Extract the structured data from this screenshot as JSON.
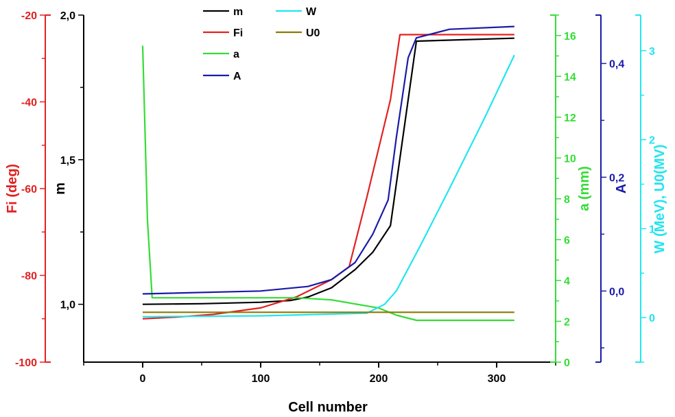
{
  "chart_data": {
    "type": "line",
    "xlabel": "Cell number",
    "x_ticks": [
      "0",
      "100",
      "200",
      "300"
    ],
    "xlim": [
      -50,
      350
    ],
    "axes": {
      "fi": {
        "label": "Fi (deg)",
        "color": "#e32020",
        "lim": [
          -100,
          -20
        ],
        "ticks": [
          "-20",
          "-40",
          "-60",
          "-80",
          "-100"
        ]
      },
      "m": {
        "label": "m",
        "color": "#000000",
        "lim": [
          0.8,
          2.0
        ],
        "ticks": [
          "2,0",
          "1,5",
          "1,0"
        ]
      },
      "a": {
        "label": "a (mm)",
        "color": "#33dd33",
        "lim": [
          0,
          17
        ],
        "ticks": [
          "0",
          "2",
          "4",
          "6",
          "8",
          "10",
          "12",
          "14",
          "16"
        ]
      },
      "A": {
        "label": "A",
        "color": "#1a1aa8",
        "lim": [
          -0.125,
          0.485
        ],
        "ticks": [
          "0,0",
          "0,2",
          "0,4"
        ]
      },
      "w": {
        "label": "W (MeV), U0(MV)",
        "color": "#22e5ee",
        "lim": [
          -0.5,
          3.4
        ],
        "ticks": [
          "0",
          "1",
          "2",
          "3"
        ]
      }
    },
    "series": [
      {
        "name": "m",
        "axis": "m",
        "color": "#000000",
        "x": [
          0,
          50,
          100,
          125,
          140,
          160,
          180,
          195,
          210,
          232,
          315
        ],
        "y": [
          1.0,
          1.002,
          1.007,
          1.013,
          1.025,
          1.057,
          1.12,
          1.18,
          1.272,
          1.91,
          1.92
        ]
      },
      {
        "name": "Fi",
        "axis": "fi",
        "color": "#e32020",
        "x": [
          0,
          30,
          60,
          100,
          130,
          160,
          175,
          190,
          210,
          218,
          315
        ],
        "y": [
          -90,
          -89.6,
          -89,
          -87.5,
          -85,
          -81,
          -78,
          -62,
          -39.5,
          -24.5,
          -24.5
        ]
      },
      {
        "name": "a",
        "axis": "a",
        "color": "#33dd33",
        "x": [
          0,
          4,
          8,
          60,
          130,
          160,
          200,
          215,
          232,
          315
        ],
        "y": [
          15.5,
          7,
          3.15,
          3.15,
          3.15,
          3.05,
          2.65,
          2.3,
          2.05,
          2.05
        ]
      },
      {
        "name": "A",
        "axis": "A",
        "color": "#1a1aa8",
        "x": [
          0,
          100,
          140,
          160,
          180,
          195,
          208,
          215,
          225,
          232,
          260,
          315
        ],
        "y": [
          -0.005,
          0.0,
          0.008,
          0.02,
          0.05,
          0.1,
          0.16,
          0.27,
          0.41,
          0.445,
          0.46,
          0.465
        ]
      },
      {
        "name": "W",
        "axis": "w",
        "color": "#22e5ee",
        "x": [
          0,
          100,
          190,
          205,
          215,
          235,
          260,
          290,
          315
        ],
        "y": [
          0.01,
          0.02,
          0.05,
          0.15,
          0.3,
          0.8,
          1.45,
          2.25,
          2.95
        ]
      },
      {
        "name": "U0",
        "axis": "w",
        "color": "#8a7a00",
        "x": [
          0,
          315
        ],
        "y": [
          0.06,
          0.06
        ]
      }
    ],
    "legend": [
      {
        "name": "m",
        "color": "#000000"
      },
      {
        "name": "Fi",
        "color": "#e32020"
      },
      {
        "name": "a",
        "color": "#33dd33"
      },
      {
        "name": "A",
        "color": "#1a1aa8"
      },
      {
        "name": "W",
        "color": "#22e5ee"
      },
      {
        "name": "U0",
        "color": "#8a7a00"
      }
    ],
    "legend_placement": "top-center",
    "grid": false
  }
}
